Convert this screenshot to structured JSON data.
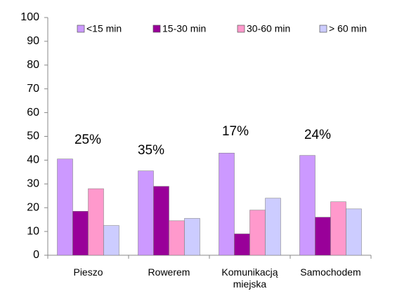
{
  "chart_data": {
    "type": "bar",
    "categories": [
      "Pieszo",
      "Rowerem",
      "Komunikacją miejska",
      "Samochodem"
    ],
    "series": [
      {
        "name": "<15 min",
        "color": "#cc99ff",
        "values": [
          40.5,
          35.5,
          43,
          42
        ]
      },
      {
        "name": "15-30 min",
        "color": "#990099",
        "values": [
          18.5,
          29,
          9,
          16
        ]
      },
      {
        "name": "30-60 min",
        "color": "#ff99cc",
        "values": [
          28,
          14.5,
          19,
          22.5
        ]
      },
      {
        "name": "> 60 min",
        "color": "#ccccff",
        "values": [
          12.5,
          15.5,
          24,
          19.5
        ]
      }
    ],
    "annotations": [
      "25%",
      "35%",
      "17%",
      "24%"
    ],
    "ylim": [
      0,
      100
    ],
    "yticks": [
      0,
      10,
      20,
      30,
      40,
      50,
      60,
      70,
      80,
      90,
      100
    ],
    "grid": false,
    "legend": "top"
  }
}
